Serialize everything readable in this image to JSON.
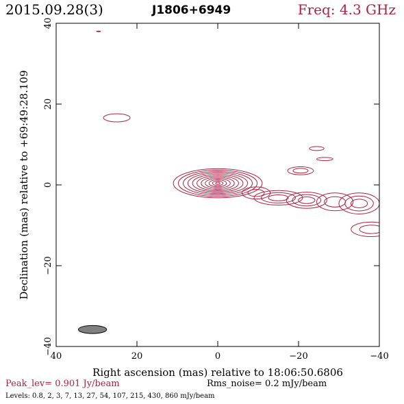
{
  "header": {
    "date": "2015.09.28(3)",
    "source": "J1806+6949",
    "freq": "Freq: 4.3 GHz"
  },
  "footer": {
    "peak": "Peak_lev=  0.901 Jy/beam",
    "rms": "Rms_noise=  0.2 mJy/beam",
    "levels": "Levels: 0.8,   2,   3,   7,   13,   27,   54,  107,  215,  430,  860 mJy/beam"
  },
  "colors": {
    "contour": "#b0213f",
    "beam": "#808080",
    "axis": "#000000"
  },
  "chart_data": {
    "type": "contour",
    "xlabel": "Right ascension (mas) relative to 18:06:50.6806",
    "ylabel": "Declination (mas) relative to +69:49:28.109",
    "xlim": [
      40,
      -40
    ],
    "ylim": [
      -40,
      40
    ],
    "xticks": [
      40,
      20,
      0,
      -20,
      -40
    ],
    "yticks": [
      -40,
      -20,
      0,
      20,
      40
    ],
    "xtick_labels": [
      "40",
      "20",
      "0",
      "−20",
      "−40"
    ],
    "ytick_labels": [
      "−40",
      "−20",
      "0",
      "20",
      "40"
    ],
    "core": {
      "x": 0,
      "y": 0.4,
      "rx_max": 11,
      "ry_max": 3.6
    },
    "beam": {
      "x": 31,
      "y": -35.8,
      "major": 7,
      "minor": 2
    },
    "components": [
      {
        "x": 25,
        "y": 16.6,
        "rx": 3.3,
        "ry": 1.0,
        "levels": 1
      },
      {
        "x": 29.5,
        "y": 38,
        "rx": 0.5,
        "ry": 0.1,
        "levels": 1
      },
      {
        "x": -20.5,
        "y": 3.5,
        "rx": 3.2,
        "ry": 1.0,
        "levels": 2
      },
      {
        "x": -24.5,
        "y": 9.0,
        "rx": 1.8,
        "ry": 0.5,
        "levels": 1
      },
      {
        "x": -26.5,
        "y": 6.4,
        "rx": 2.0,
        "ry": 0.4,
        "levels": 1
      },
      {
        "x": -9.5,
        "y": -2.0,
        "rx": 3.5,
        "ry": 1.5,
        "levels": 2
      },
      {
        "x": -15,
        "y": -3.2,
        "rx": 6.0,
        "ry": 1.8,
        "levels": 3
      },
      {
        "x": -22,
        "y": -3.8,
        "rx": 5.0,
        "ry": 2.0,
        "levels": 3
      },
      {
        "x": -29,
        "y": -4.2,
        "rx": 4.5,
        "ry": 2.2,
        "levels": 2
      },
      {
        "x": -35,
        "y": -4.6,
        "rx": 5.0,
        "ry": 2.6,
        "levels": 3
      },
      {
        "x": -38,
        "y": -11.0,
        "rx": 5.0,
        "ry": 1.8,
        "levels": 2
      }
    ]
  }
}
